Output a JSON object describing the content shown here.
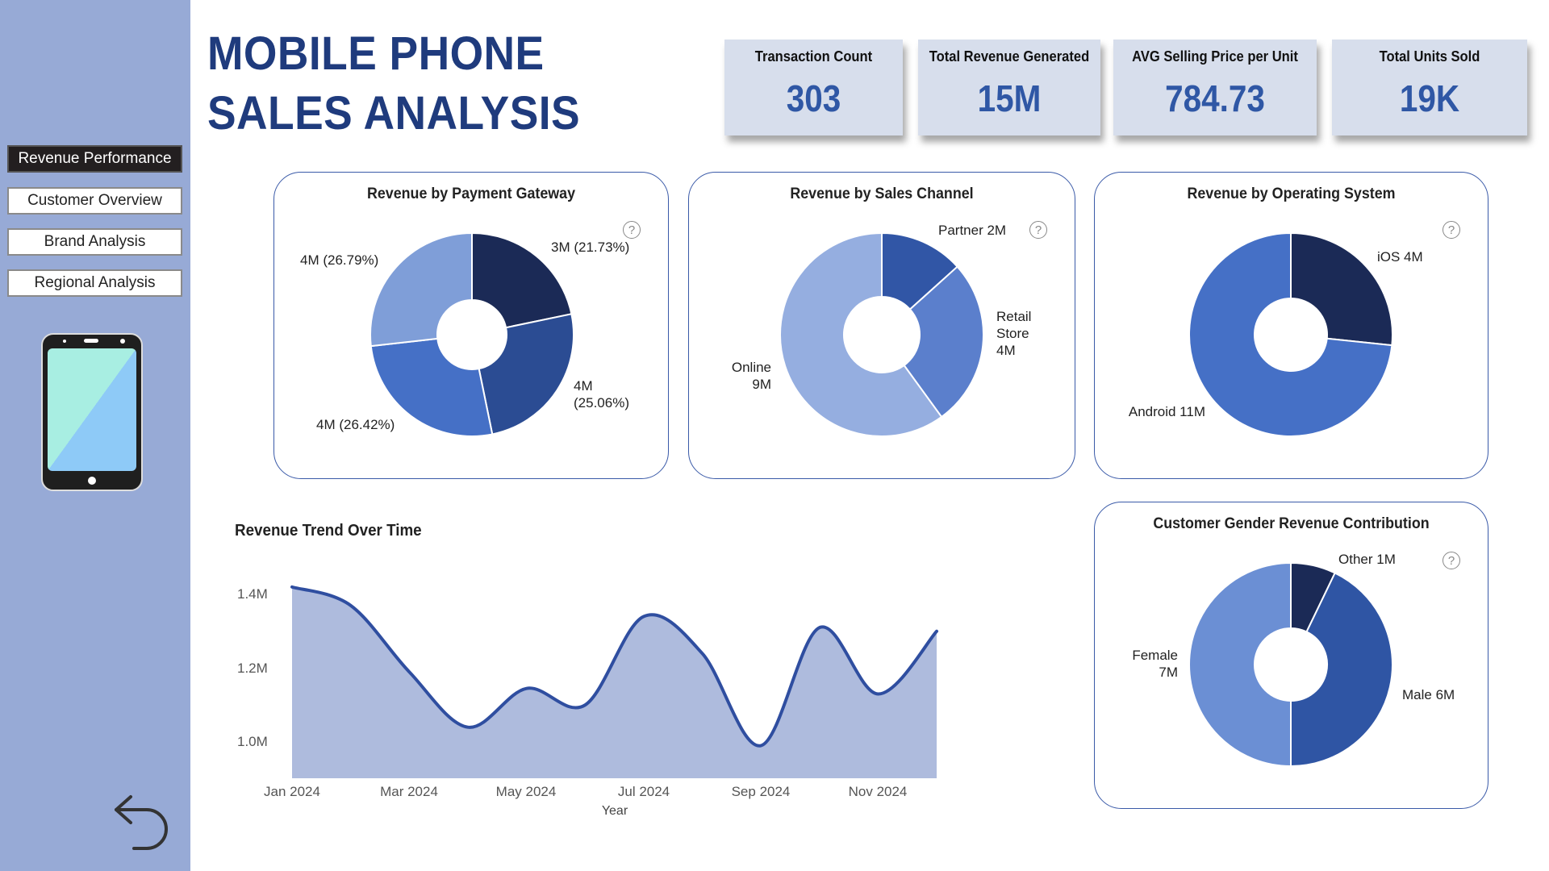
{
  "nav": {
    "items": [
      {
        "label": "Revenue Performance",
        "active": true
      },
      {
        "label": "Customer Overview",
        "active": false
      },
      {
        "label": "Brand Analysis",
        "active": false
      },
      {
        "label": "Regional Analysis",
        "active": false
      }
    ]
  },
  "header": {
    "title_line1": "MOBILE PHONE",
    "title_line2": "SALES ANALYSIS"
  },
  "kpis": [
    {
      "label": "Transaction Count",
      "value": "303"
    },
    {
      "label": "Total Revenue Generated",
      "value": "15M"
    },
    {
      "label": "AVG Selling Price per Unit",
      "value": "784.73"
    },
    {
      "label": "Total Units Sold",
      "value": "19K"
    }
  ],
  "help_symbol": "?",
  "colors": {
    "sidebar": "#97aad6",
    "title": "#1f3b7d",
    "kpi_value": "#2f57a5",
    "area_fill": "#aebbdd",
    "line": "#2f4ea0"
  },
  "chart_data": [
    {
      "type": "pie",
      "title": "Revenue by Payment Gateway",
      "slices": [
        {
          "label": "3M (21.73%)",
          "value": 21.73,
          "color": "#1b2a56"
        },
        {
          "label": "4M\n(25.06%)",
          "value": 25.06,
          "color": "#2b4c93"
        },
        {
          "label": "4M (26.42%)",
          "value": 26.42,
          "color": "#4570c6"
        },
        {
          "label": "4M (26.79%)",
          "value": 26.79,
          "color": "#7f9ed8"
        }
      ]
    },
    {
      "type": "pie",
      "title": "Revenue by Sales Channel",
      "slices": [
        {
          "label": "Partner 2M",
          "value": 2,
          "color": "#3156a6"
        },
        {
          "label": "Retail\nStore\n4M",
          "value": 4,
          "color": "#5b7fcc"
        },
        {
          "label": "Online\n9M",
          "value": 9,
          "color": "#95aee0"
        }
      ]
    },
    {
      "type": "pie",
      "title": "Revenue by Operating System",
      "slices": [
        {
          "label": "iOS 4M",
          "value": 4,
          "color": "#1b2a56"
        },
        {
          "label": "Android 11M",
          "value": 11,
          "color": "#4570c6"
        }
      ]
    },
    {
      "type": "line",
      "title": "Revenue Trend Over Time",
      "xlabel": "Year",
      "ylabel": "",
      "x": [
        "Jan 2024",
        "Feb 2024",
        "Mar 2024",
        "Apr 2024",
        "May 2024",
        "Jun 2024",
        "Jul 2024",
        "Aug 2024",
        "Sep 2024",
        "Oct 2024",
        "Nov 2024",
        "Dec 2024"
      ],
      "x_tick_labels": [
        "Jan 2024",
        "Mar 2024",
        "May 2024",
        "Jul 2024",
        "Sep 2024",
        "Nov 2024"
      ],
      "y_tick_labels": [
        "1.4M",
        "1.2M",
        "1.0M"
      ],
      "y_ticks": [
        1.4,
        1.2,
        1.0
      ],
      "values": [
        1.42,
        1.37,
        1.19,
        1.04,
        1.145,
        1.1,
        1.34,
        1.24,
        0.99,
        1.31,
        1.13,
        1.3
      ],
      "unit": "M",
      "ylim": [
        0.9,
        1.45
      ],
      "grid": false
    },
    {
      "type": "pie",
      "title": "Customer Gender Revenue Contribution",
      "slices": [
        {
          "label": "Other 1M",
          "value": 1,
          "color": "#1b2a56"
        },
        {
          "label": "Male 6M",
          "value": 6,
          "color": "#2f55a4"
        },
        {
          "label": "Female\n7M",
          "value": 7,
          "color": "#6b8fd4"
        }
      ]
    }
  ]
}
